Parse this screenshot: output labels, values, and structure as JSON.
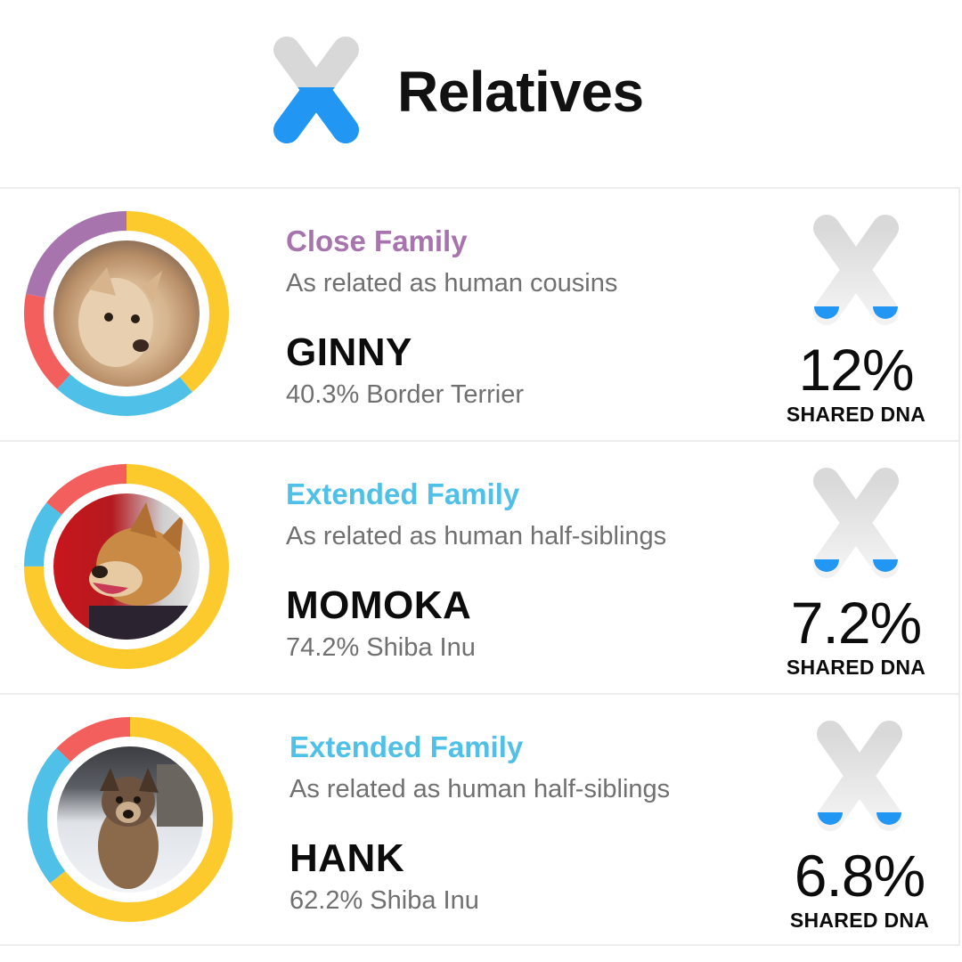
{
  "header": {
    "title": "Relatives",
    "logo_icon": "chromosome-logo-icon"
  },
  "colors": {
    "close_family": "#a774ae",
    "extended_family": "#4fc0e8",
    "brand_blue": "#2196f3",
    "ring_yellow": "#fdca2e",
    "ring_red": "#f25f5c",
    "ring_purple": "#a774ae",
    "ring_blue": "#4fc0e8"
  },
  "relatives": [
    {
      "category": "Close Family",
      "relation": "As related as human cousins",
      "name": "GINNY",
      "breed": "40.3% Border Terrier",
      "shared_value": "12%",
      "shared_label": "SHARED DNA"
    },
    {
      "category": "Extended Family",
      "relation": "As related as human half-siblings",
      "name": "MOMOKA",
      "breed": "74.2% Shiba Inu",
      "shared_value": "7.2%",
      "shared_label": "SHARED DNA"
    },
    {
      "category": "Extended Family",
      "relation": "As related as human half-siblings",
      "name": "HANK",
      "breed": "62.2% Shiba Inu",
      "shared_value": "6.8%",
      "shared_label": "SHARED DNA"
    }
  ]
}
